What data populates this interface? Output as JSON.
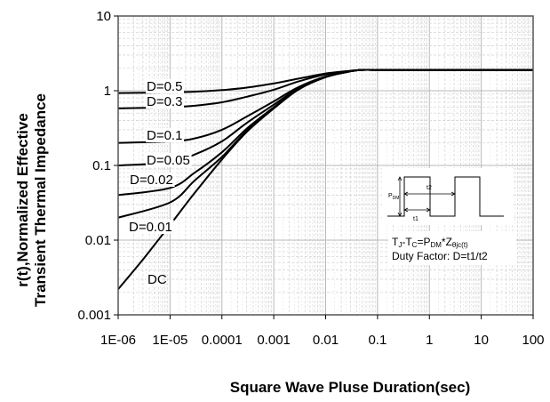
{
  "chart_data": {
    "type": "line",
    "title": "",
    "xlabel": "Square Wave Pluse Duration(sec)",
    "ylabel_line1": "r(t),Normalized Effective",
    "ylabel_line2": "Transient Thermal Impedance",
    "x_scale": "log",
    "y_scale": "log",
    "xlim": [
      1e-06,
      100
    ],
    "ylim": [
      0.001,
      10
    ],
    "x_tick_labels": [
      "1E-06",
      "1E-05",
      "0.0001",
      "0.001",
      "0.01",
      "0.1",
      "1",
      "10",
      "100"
    ],
    "y_tick_labels": [
      "0.001",
      "0.01",
      "0.1",
      "1",
      "10"
    ],
    "grid": true,
    "series": [
      {
        "name": "D=0.5",
        "x": [
          1e-06,
          1e-05,
          3e-05,
          0.0001,
          0.0003,
          0.001,
          0.003,
          0.01,
          0.03,
          0.05,
          0.1,
          1,
          10,
          100
        ],
        "y": [
          0.93,
          0.95,
          0.97,
          1.02,
          1.1,
          1.25,
          1.45,
          1.7,
          1.85,
          1.9,
          1.9,
          1.9,
          1.9,
          1.9
        ]
      },
      {
        "name": "D=0.3",
        "x": [
          1e-06,
          1e-05,
          3e-05,
          0.0001,
          0.0003,
          0.001,
          0.003,
          0.01,
          0.03,
          0.05,
          0.1,
          1,
          10,
          100
        ],
        "y": [
          0.58,
          0.6,
          0.63,
          0.7,
          0.83,
          1.03,
          1.33,
          1.65,
          1.84,
          1.9,
          1.9,
          1.9,
          1.9,
          1.9
        ]
      },
      {
        "name": "D=0.1",
        "x": [
          1e-06,
          1e-05,
          3e-05,
          0.0001,
          0.0003,
          0.001,
          0.003,
          0.01,
          0.03,
          0.05,
          0.1,
          1,
          10,
          100
        ],
        "y": [
          0.2,
          0.21,
          0.23,
          0.3,
          0.45,
          0.72,
          1.12,
          1.55,
          1.82,
          1.9,
          1.9,
          1.9,
          1.9,
          1.9
        ]
      },
      {
        "name": "D=0.05",
        "x": [
          1e-06,
          1e-05,
          3e-05,
          0.0001,
          0.0003,
          0.001,
          0.003,
          0.01,
          0.03,
          0.05,
          0.1,
          1,
          10,
          100
        ],
        "y": [
          0.1,
          0.11,
          0.14,
          0.21,
          0.37,
          0.65,
          1.08,
          1.53,
          1.82,
          1.9,
          1.9,
          1.9,
          1.9,
          1.9
        ]
      },
      {
        "name": "D=0.02",
        "x": [
          1e-06,
          1e-05,
          3e-05,
          0.0001,
          0.0003,
          0.001,
          0.003,
          0.01,
          0.03,
          0.05,
          0.1,
          1,
          10,
          100
        ],
        "y": [
          0.04,
          0.05,
          0.08,
          0.15,
          0.31,
          0.6,
          1.05,
          1.52,
          1.82,
          1.9,
          1.9,
          1.9,
          1.9,
          1.9
        ]
      },
      {
        "name": "D=0.01",
        "x": [
          1e-06,
          1e-05,
          3e-05,
          0.0001,
          0.0003,
          0.001,
          0.003,
          0.01,
          0.03,
          0.05,
          0.1,
          1,
          10,
          100
        ],
        "y": [
          0.02,
          0.032,
          0.063,
          0.13,
          0.29,
          0.58,
          1.04,
          1.52,
          1.82,
          1.9,
          1.9,
          1.9,
          1.9,
          1.9
        ]
      },
      {
        "name": "DC",
        "x": [
          1e-06,
          3e-06,
          1e-05,
          3e-05,
          0.0001,
          0.0003,
          0.001,
          0.003,
          0.01,
          0.03,
          0.05,
          0.1,
          1,
          10,
          100
        ],
        "y": [
          0.0022,
          0.0055,
          0.016,
          0.043,
          0.12,
          0.28,
          0.58,
          1.04,
          1.52,
          1.82,
          1.9,
          1.9,
          1.9,
          1.9,
          1.9
        ]
      }
    ],
    "inset": {
      "pdm_label": "P",
      "pdm_sub": "DM",
      "t1_label": "t1",
      "t2_label": "t2"
    },
    "annotation_formula": {
      "p1": "T",
      "p1_sub": "J",
      "p2": "-T",
      "p2_sub": "C",
      "p3": "=P",
      "p3_sub": "DM",
      "p4": "*Z",
      "p4_sub": "θjc(t)"
    },
    "annotation_duty": "Duty Factor: D=t1/t2"
  }
}
